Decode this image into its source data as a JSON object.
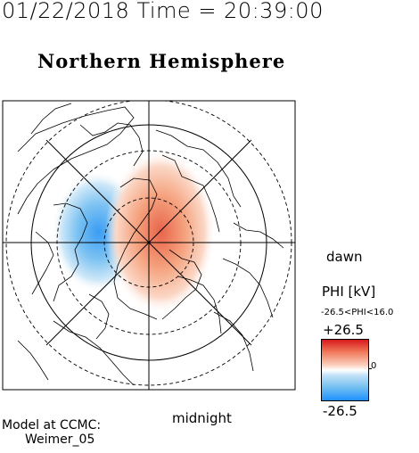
{
  "header": {
    "datetime": "01/22/2018 Time = 20:39:00"
  },
  "map": {
    "title": "Northern Hemisphere",
    "label_dawn": "dawn",
    "label_midnight": "midnight",
    "projection": "polar stereographic, north pole centered",
    "overlays": [
      "coastlines",
      "latitude circles (dashed)",
      "meridian lines",
      "potential contours"
    ]
  },
  "legend": {
    "title": "PHI [kV]",
    "range_text": "-26.5<PHI<16.0",
    "max_label": "+26.5",
    "min_label": "-26.5",
    "zero_label": "0",
    "colors": {
      "positive": "#d7191c",
      "mid": "#ffffff",
      "negative": "#1e90ff"
    }
  },
  "credit": {
    "line1": "Model at CCMC:",
    "line2": "Weimer_05"
  }
}
